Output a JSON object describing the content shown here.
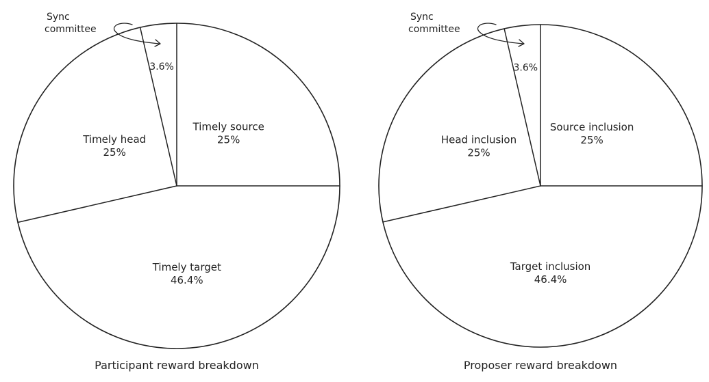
{
  "chart_data": [
    {
      "type": "pie",
      "title": "Participant reward breakdown",
      "slices": [
        {
          "label": "Timely source",
          "value": 25,
          "value_label": "25%"
        },
        {
          "label": "Timely target",
          "value": 46.4,
          "value_label": "46.4%"
        },
        {
          "label": "Timely head",
          "value": 25,
          "value_label": "25%"
        },
        {
          "label": "Sync\ncommittee",
          "value": 3.6,
          "value_label": "3.6%"
        }
      ]
    },
    {
      "type": "pie",
      "title": "Proposer reward breakdown",
      "slices": [
        {
          "label": "Source inclusion",
          "value": 25,
          "value_label": "25%"
        },
        {
          "label": "Target inclusion",
          "value": 46.4,
          "value_label": "46.4%"
        },
        {
          "label": "Head inclusion",
          "value": 25,
          "value_label": "25%"
        },
        {
          "label": "Sync\ncommittee",
          "value": 3.6,
          "value_label": "3.6%"
        }
      ]
    }
  ]
}
